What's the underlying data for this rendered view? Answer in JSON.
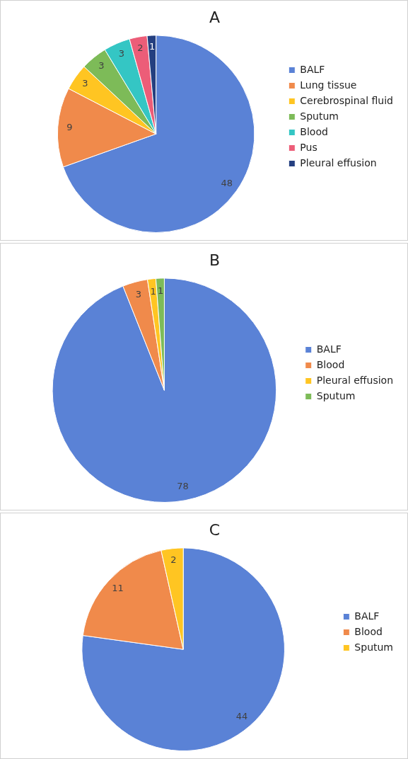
{
  "chart_data": [
    {
      "type": "pie",
      "title": "A",
      "categories": [
        "BALF",
        "Lung tissue",
        "Cerebrospinal fluid",
        "Sputum",
        "Blood",
        "Pus",
        "Pleural effusion"
      ],
      "values": [
        48,
        9,
        3,
        3,
        3,
        2,
        1
      ],
      "colors": [
        "#5a82d6",
        "#f08a4b",
        "#ffc522",
        "#7dbb58",
        "#34c6c4",
        "#ec5d78",
        "#243f80"
      ],
      "data_labels": true,
      "legend": "right"
    },
    {
      "type": "pie",
      "title": "B",
      "categories": [
        "BALF",
        "Blood",
        "Pleural effusion",
        "Sputum"
      ],
      "values": [
        78,
        3,
        1,
        1
      ],
      "colors": [
        "#5a82d6",
        "#f08a4b",
        "#ffc522",
        "#7dbb58"
      ],
      "data_labels": true,
      "legend": "right"
    },
    {
      "type": "pie",
      "title": "C",
      "categories": [
        "BALF",
        "Blood",
        "Sputum"
      ],
      "values": [
        44,
        11,
        2
      ],
      "colors": [
        "#5a82d6",
        "#f08a4b",
        "#ffc522"
      ],
      "data_labels": true,
      "legend": "right"
    }
  ]
}
